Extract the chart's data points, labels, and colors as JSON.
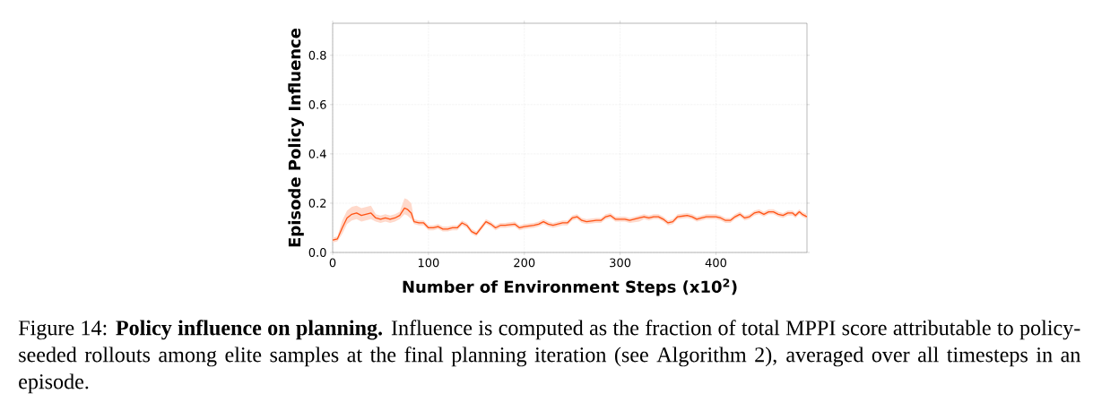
{
  "chart_data": {
    "type": "line",
    "xlabel": "Number of Environment Steps (x10$^{2}$)",
    "ylabel": "Episode Policy Influence",
    "xlim": [
      0,
      495
    ],
    "ylim": [
      0,
      0.93
    ],
    "xticks": [
      0,
      100,
      200,
      300,
      400
    ],
    "yticks": [
      {
        "value": 0,
        "label": "0.0"
      },
      0.2,
      0.4,
      0.6,
      0.8
    ],
    "grid": true,
    "annotations": [
      "Figure 14: **Policy influence on planning.** Influence is computed as the fraction of total MPPI score attributable to policy-seeded rollouts among elite samples at the final planning iteration (see Algorithm 2), averaged over all timesteps in an episode."
    ],
    "series": [
      {
        "color": "#ff5314",
        "x": [
          0,
          5,
          10,
          15,
          20,
          25,
          30,
          35,
          40,
          45,
          50,
          55,
          60,
          65,
          70,
          75,
          78,
          82,
          85,
          90,
          95,
          100,
          105,
          110,
          115,
          120,
          125,
          130,
          135,
          140,
          145,
          150,
          155,
          160,
          165,
          170,
          175,
          180,
          190,
          195,
          200,
          210,
          215,
          220,
          225,
          230,
          240,
          245,
          250,
          255,
          260,
          265,
          275,
          280,
          285,
          290,
          295,
          305,
          310,
          320,
          325,
          330,
          335,
          340,
          345,
          350,
          355,
          360,
          370,
          375,
          380,
          385,
          390,
          400,
          405,
          410,
          415,
          420,
          425,
          430,
          435,
          440,
          445,
          450,
          455,
          460,
          465,
          470,
          475,
          480,
          483,
          487,
          490,
          495
        ],
        "values": [
          0.05,
          0.055,
          0.1,
          0.14,
          0.155,
          0.16,
          0.15,
          0.155,
          0.16,
          0.14,
          0.135,
          0.14,
          0.135,
          0.14,
          0.15,
          0.18,
          0.175,
          0.16,
          0.125,
          0.12,
          0.12,
          0.1,
          0.1,
          0.105,
          0.095,
          0.095,
          0.1,
          0.1,
          0.12,
          0.11,
          0.085,
          0.075,
          0.1,
          0.125,
          0.115,
          0.1,
          0.11,
          0.11,
          0.115,
          0.1,
          0.105,
          0.11,
          0.115,
          0.125,
          0.115,
          0.11,
          0.12,
          0.12,
          0.14,
          0.145,
          0.13,
          0.125,
          0.13,
          0.13,
          0.145,
          0.15,
          0.135,
          0.135,
          0.13,
          0.14,
          0.145,
          0.14,
          0.145,
          0.145,
          0.135,
          0.12,
          0.125,
          0.145,
          0.15,
          0.145,
          0.135,
          0.14,
          0.145,
          0.145,
          0.14,
          0.13,
          0.13,
          0.145,
          0.155,
          0.14,
          0.145,
          0.16,
          0.165,
          0.155,
          0.165,
          0.165,
          0.155,
          0.15,
          0.16,
          0.16,
          0.15,
          0.165,
          0.155,
          0.145
        ],
        "lower": [
          0.04,
          0.045,
          0.075,
          0.115,
          0.13,
          0.135,
          0.125,
          0.13,
          0.135,
          0.125,
          0.12,
          0.125,
          0.12,
          0.125,
          0.135,
          0.155,
          0.15,
          0.135,
          0.115,
          0.11,
          0.11,
          0.09,
          0.09,
          0.095,
          0.085,
          0.085,
          0.09,
          0.09,
          0.11,
          0.1,
          0.075,
          0.065,
          0.09,
          0.115,
          0.105,
          0.09,
          0.1,
          0.1,
          0.105,
          0.09,
          0.095,
          0.1,
          0.105,
          0.115,
          0.105,
          0.1,
          0.11,
          0.11,
          0.13,
          0.135,
          0.12,
          0.115,
          0.12,
          0.12,
          0.135,
          0.14,
          0.125,
          0.125,
          0.12,
          0.125,
          0.135,
          0.13,
          0.135,
          0.135,
          0.125,
          0.11,
          0.115,
          0.135,
          0.14,
          0.135,
          0.125,
          0.13,
          0.135,
          0.135,
          0.13,
          0.12,
          0.12,
          0.135,
          0.145,
          0.13,
          0.135,
          0.15,
          0.155,
          0.145,
          0.155,
          0.155,
          0.145,
          0.14,
          0.15,
          0.15,
          0.14,
          0.155,
          0.145,
          0.135
        ],
        "upper": [
          0.06,
          0.065,
          0.13,
          0.17,
          0.185,
          0.19,
          0.18,
          0.185,
          0.19,
          0.155,
          0.15,
          0.155,
          0.15,
          0.155,
          0.165,
          0.22,
          0.215,
          0.2,
          0.135,
          0.13,
          0.13,
          0.11,
          0.11,
          0.115,
          0.105,
          0.105,
          0.11,
          0.11,
          0.13,
          0.12,
          0.095,
          0.085,
          0.11,
          0.135,
          0.125,
          0.11,
          0.12,
          0.12,
          0.125,
          0.11,
          0.115,
          0.12,
          0.125,
          0.135,
          0.125,
          0.12,
          0.13,
          0.13,
          0.15,
          0.155,
          0.14,
          0.135,
          0.14,
          0.14,
          0.155,
          0.16,
          0.145,
          0.145,
          0.14,
          0.15,
          0.155,
          0.15,
          0.155,
          0.155,
          0.145,
          0.13,
          0.135,
          0.155,
          0.16,
          0.155,
          0.145,
          0.15,
          0.155,
          0.155,
          0.15,
          0.14,
          0.14,
          0.155,
          0.165,
          0.15,
          0.155,
          0.17,
          0.175,
          0.165,
          0.175,
          0.175,
          0.165,
          0.16,
          0.17,
          0.17,
          0.16,
          0.175,
          0.165,
          0.155
        ]
      }
    ]
  }
}
